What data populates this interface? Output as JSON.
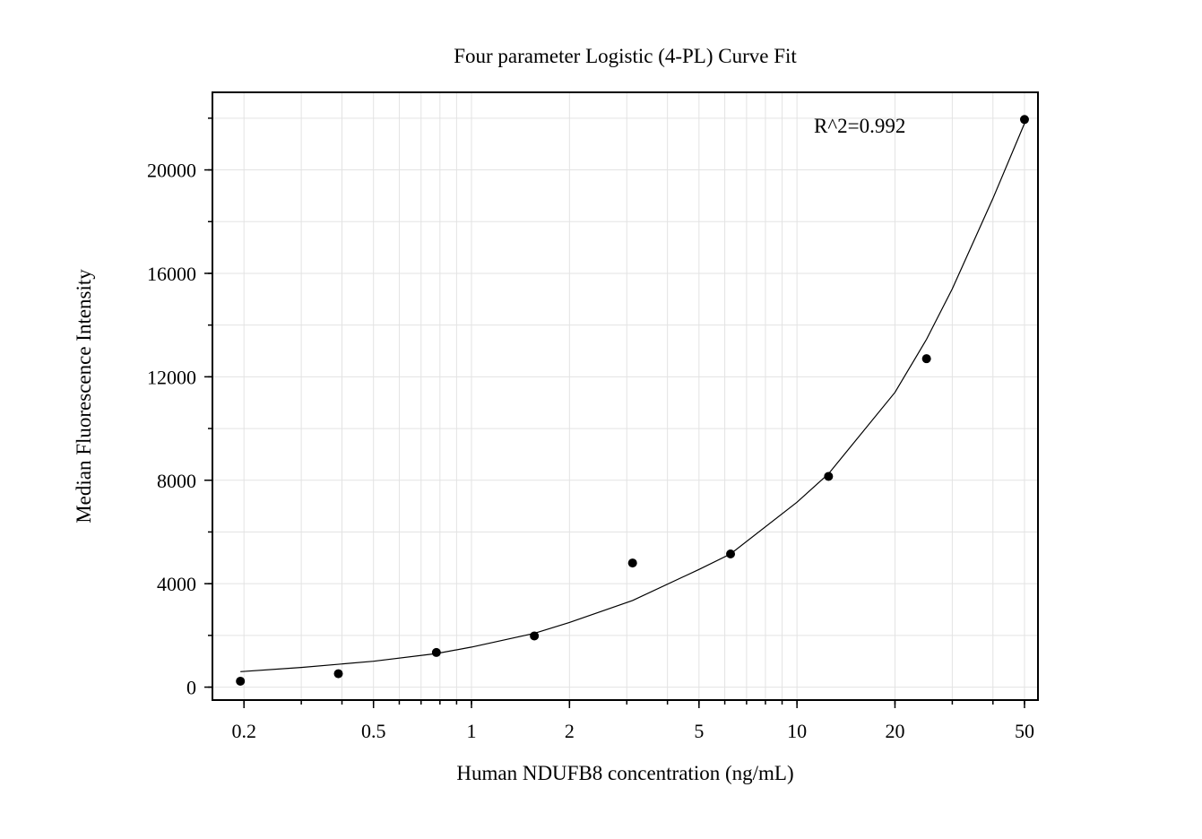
{
  "chart_data": {
    "type": "scatter",
    "title": "Four parameter Logistic (4-PL) Curve Fit",
    "xlabel": "Human NDUFB8 concentration (ng/mL)",
    "ylabel": "Median Fluorescence Intensity",
    "x_scale": "log",
    "xlim": [
      0.16,
      55
    ],
    "ylim": [
      -500,
      23000
    ],
    "x_ticks": [
      0.2,
      0.5,
      1,
      2,
      5,
      10,
      20,
      50
    ],
    "x_tick_labels": [
      "0.2",
      "0.5",
      "1",
      "2",
      "5",
      "10",
      "20",
      "50"
    ],
    "y_ticks": [
      0,
      4000,
      8000,
      12000,
      16000,
      20000
    ],
    "y_tick_labels": [
      "0",
      "4000",
      "8000",
      "12000",
      "16000",
      "20000"
    ],
    "grid": true,
    "annotation": "R^2=0.992",
    "marker_color": "#000000",
    "curve_color": "#000000",
    "points": {
      "x": [
        0.195,
        0.39,
        0.78,
        1.56,
        3.125,
        6.25,
        12.5,
        25,
        50
      ],
      "y": [
        230,
        520,
        1340,
        1980,
        4800,
        5150,
        8150,
        12700,
        21950
      ]
    },
    "fit_curve": {
      "x": [
        0.195,
        0.3,
        0.5,
        0.78,
        1,
        1.56,
        2,
        3.125,
        5,
        6.25,
        10,
        12.5,
        20,
        25,
        30,
        40,
        50
      ],
      "y": [
        600,
        760,
        1000,
        1300,
        1550,
        2080,
        2500,
        3350,
        4550,
        5150,
        7150,
        8250,
        11400,
        13450,
        15400,
        18900,
        21800
      ]
    }
  }
}
